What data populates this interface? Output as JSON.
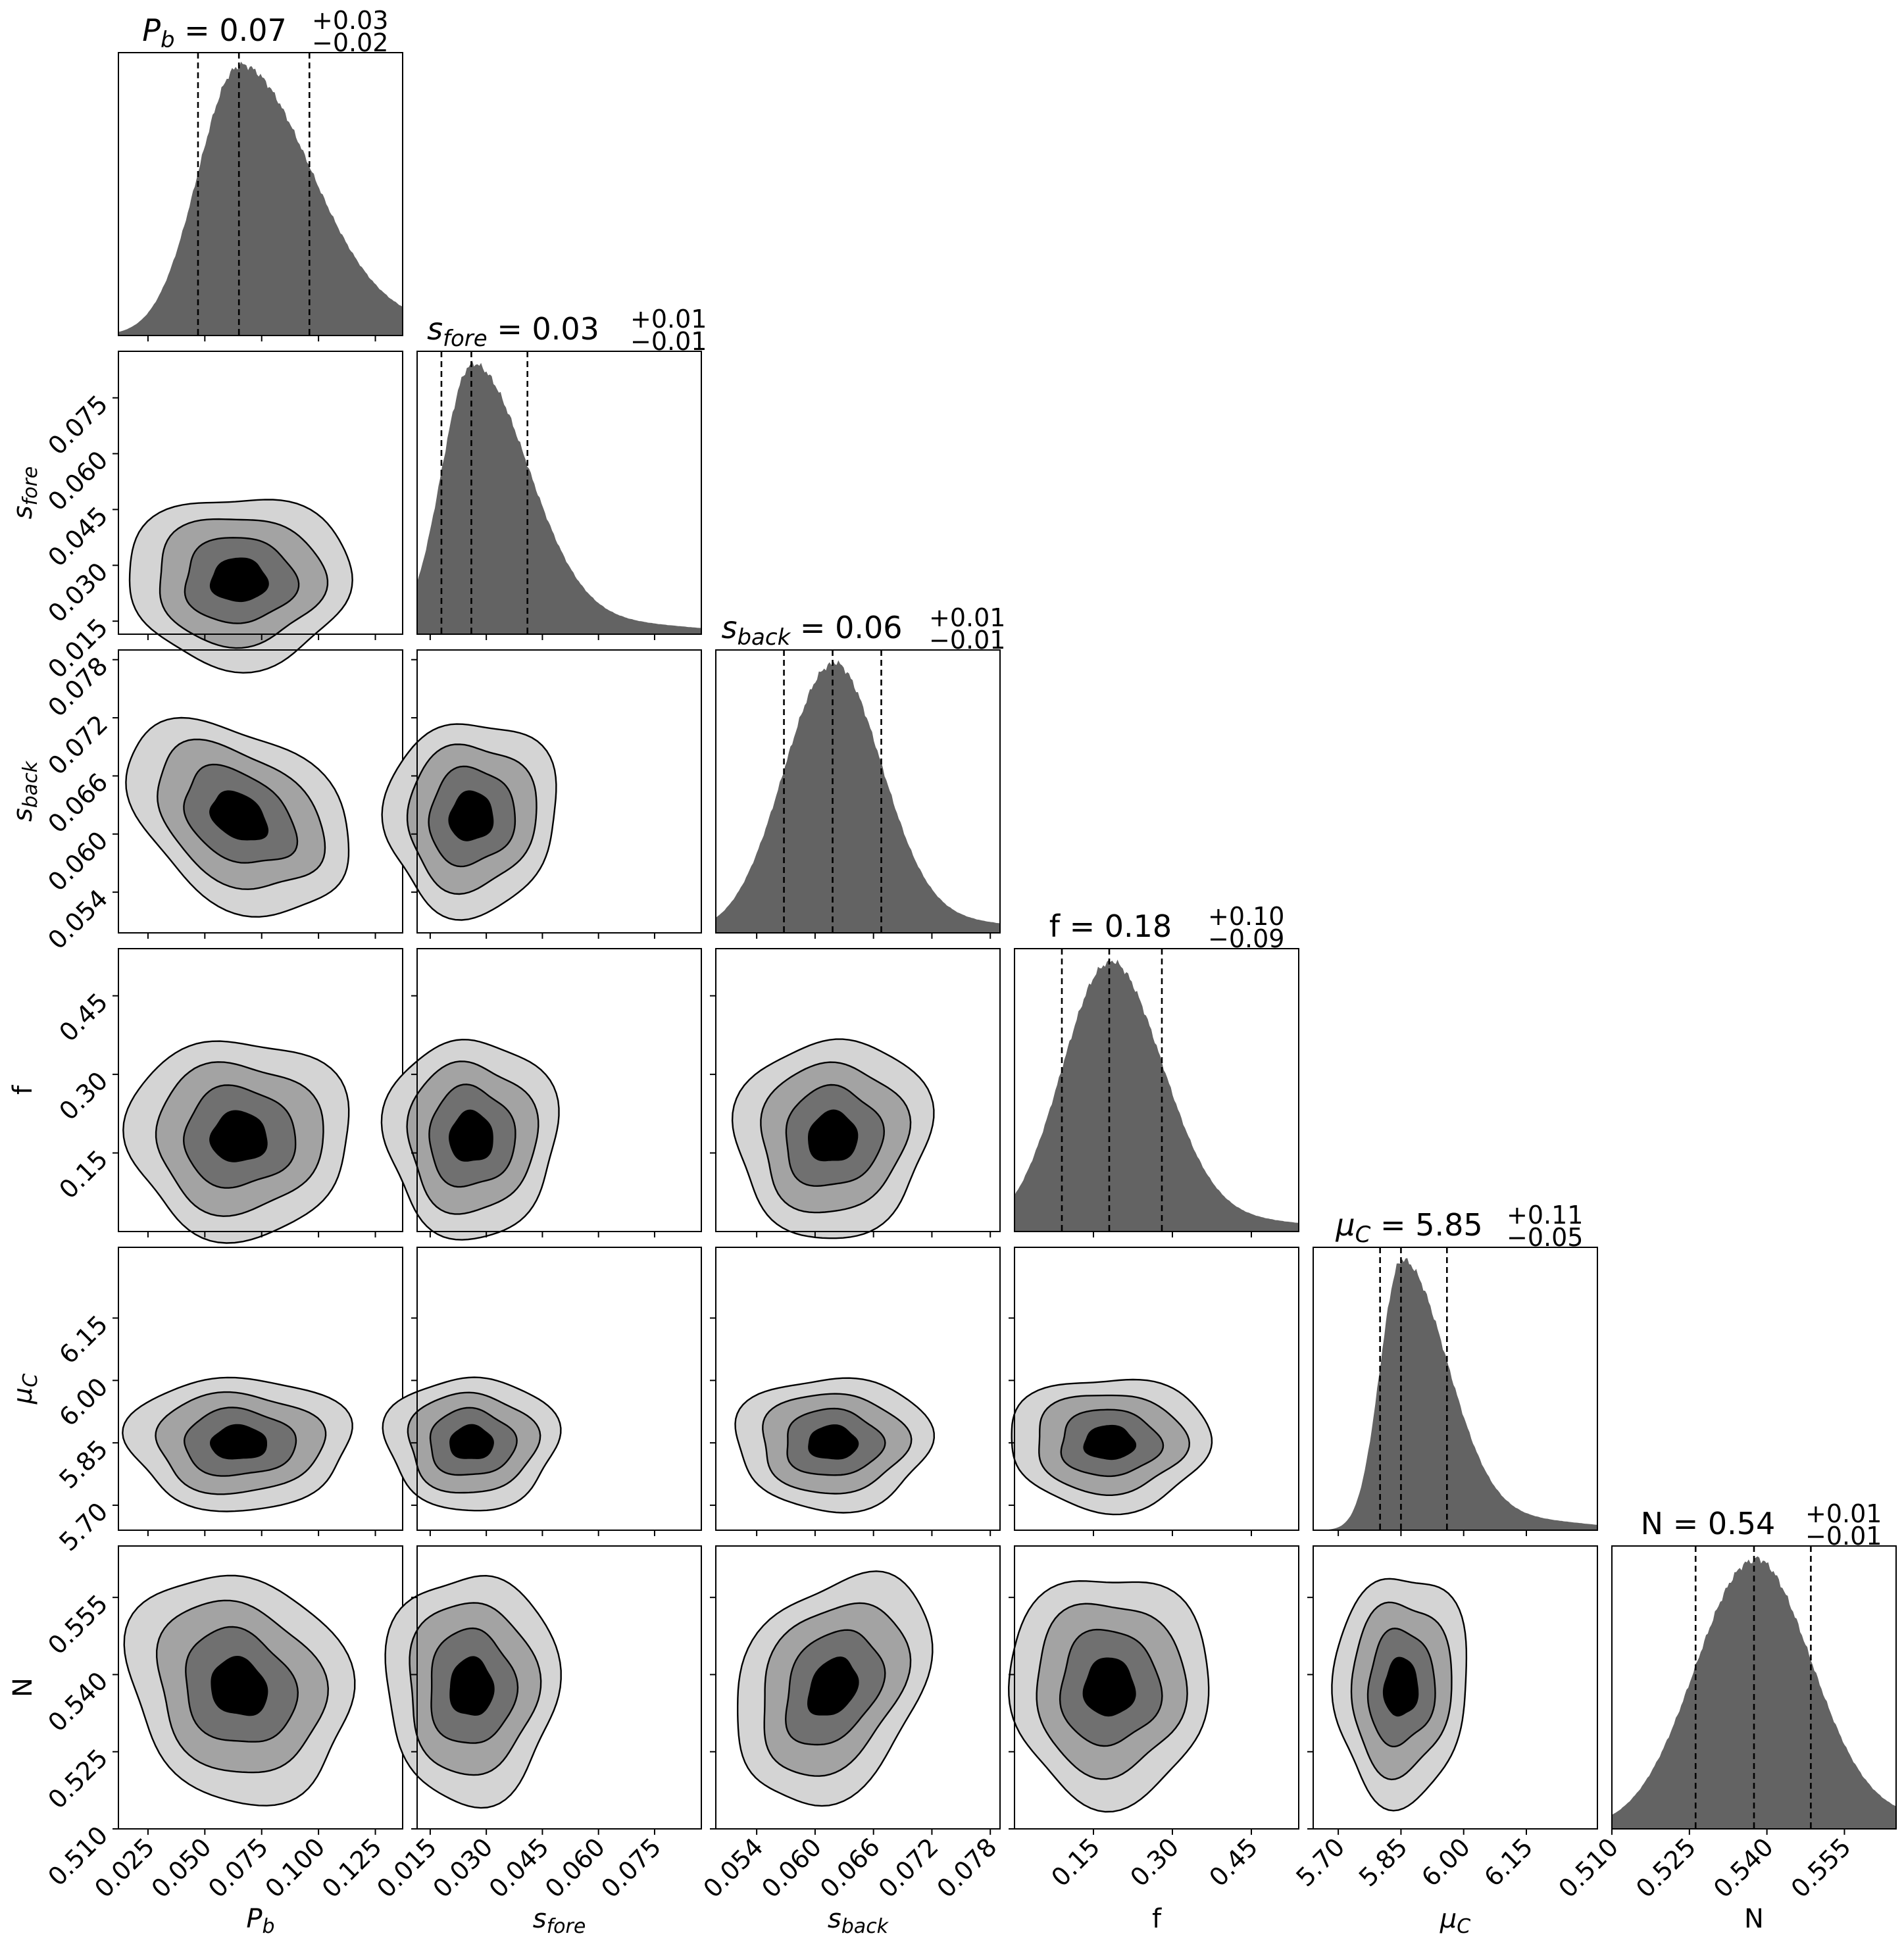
{
  "chart_data": {
    "type": "corner",
    "parameters": [
      {
        "id": "Pb",
        "label_base": "P",
        "label_sub": "b",
        "median": 0.065,
        "q16": 0.047,
        "q84": 0.096,
        "range": [
          0.012,
          0.137
        ],
        "ticks": [
          "0.025",
          "0.050",
          "0.075",
          "0.100",
          "0.125"
        ],
        "title": {
          "value": "0.07",
          "plus": "+0.03",
          "minus": "−0.02"
        }
      },
      {
        "id": "sfore",
        "label_base": "s",
        "label_sub": "fore",
        "median": 0.026,
        "q16": 0.018,
        "q84": 0.041,
        "range": [
          0.0115,
          0.0875
        ],
        "ticks": [
          "0.015",
          "0.030",
          "0.045",
          "0.060",
          "0.075"
        ],
        "title": {
          "value": "0.03",
          "plus": "+0.01",
          "minus": "−0.01"
        }
      },
      {
        "id": "sback",
        "label_base": "s",
        "label_sub": "back",
        "median": 0.0618,
        "q16": 0.0568,
        "q84": 0.0668,
        "range": [
          0.0498,
          0.079
        ],
        "ticks": [
          "0.054",
          "0.060",
          "0.066",
          "0.072",
          "0.078"
        ],
        "title": {
          "value": "0.06",
          "plus": "+0.01",
          "minus": "−0.01"
        }
      },
      {
        "id": "f",
        "label_base": "f",
        "label_sub": "",
        "median": 0.18,
        "q16": 0.09,
        "q84": 0.28,
        "range": [
          0.0,
          0.54
        ],
        "ticks": [
          "0.15",
          "0.30",
          "0.45"
        ],
        "title": {
          "value": "0.18",
          "plus": "+0.10",
          "minus": "−0.09"
        }
      },
      {
        "id": "muC",
        "label_base": "μ",
        "label_sub": "C",
        "median": 5.85,
        "q16": 5.8,
        "q84": 5.96,
        "range": [
          5.64,
          6.32
        ],
        "ticks": [
          "5.70",
          "5.85",
          "6.00",
          "6.15"
        ],
        "title": {
          "value": "5.85",
          "plus": "+0.11",
          "minus": "−0.05"
        }
      },
      {
        "id": "N",
        "label_base": "N",
        "label_sub": "",
        "median": 0.5375,
        "q16": 0.5262,
        "q84": 0.5485,
        "range": [
          0.51,
          0.565
        ],
        "ticks": [
          "0.510",
          "0.525",
          "0.540",
          "0.555"
        ],
        "title": {
          "value": "0.54",
          "plus": "+0.01",
          "minus": "−0.01"
        }
      }
    ],
    "histogram_style": {
      "fill": "#636363"
    },
    "contour_colors": [
      "#d4d4d4",
      "#a3a3a3",
      "#707070",
      "#000000"
    ],
    "contour_levels_sigma": [
      2.0,
      1.5,
      1.0,
      0.5
    ]
  }
}
